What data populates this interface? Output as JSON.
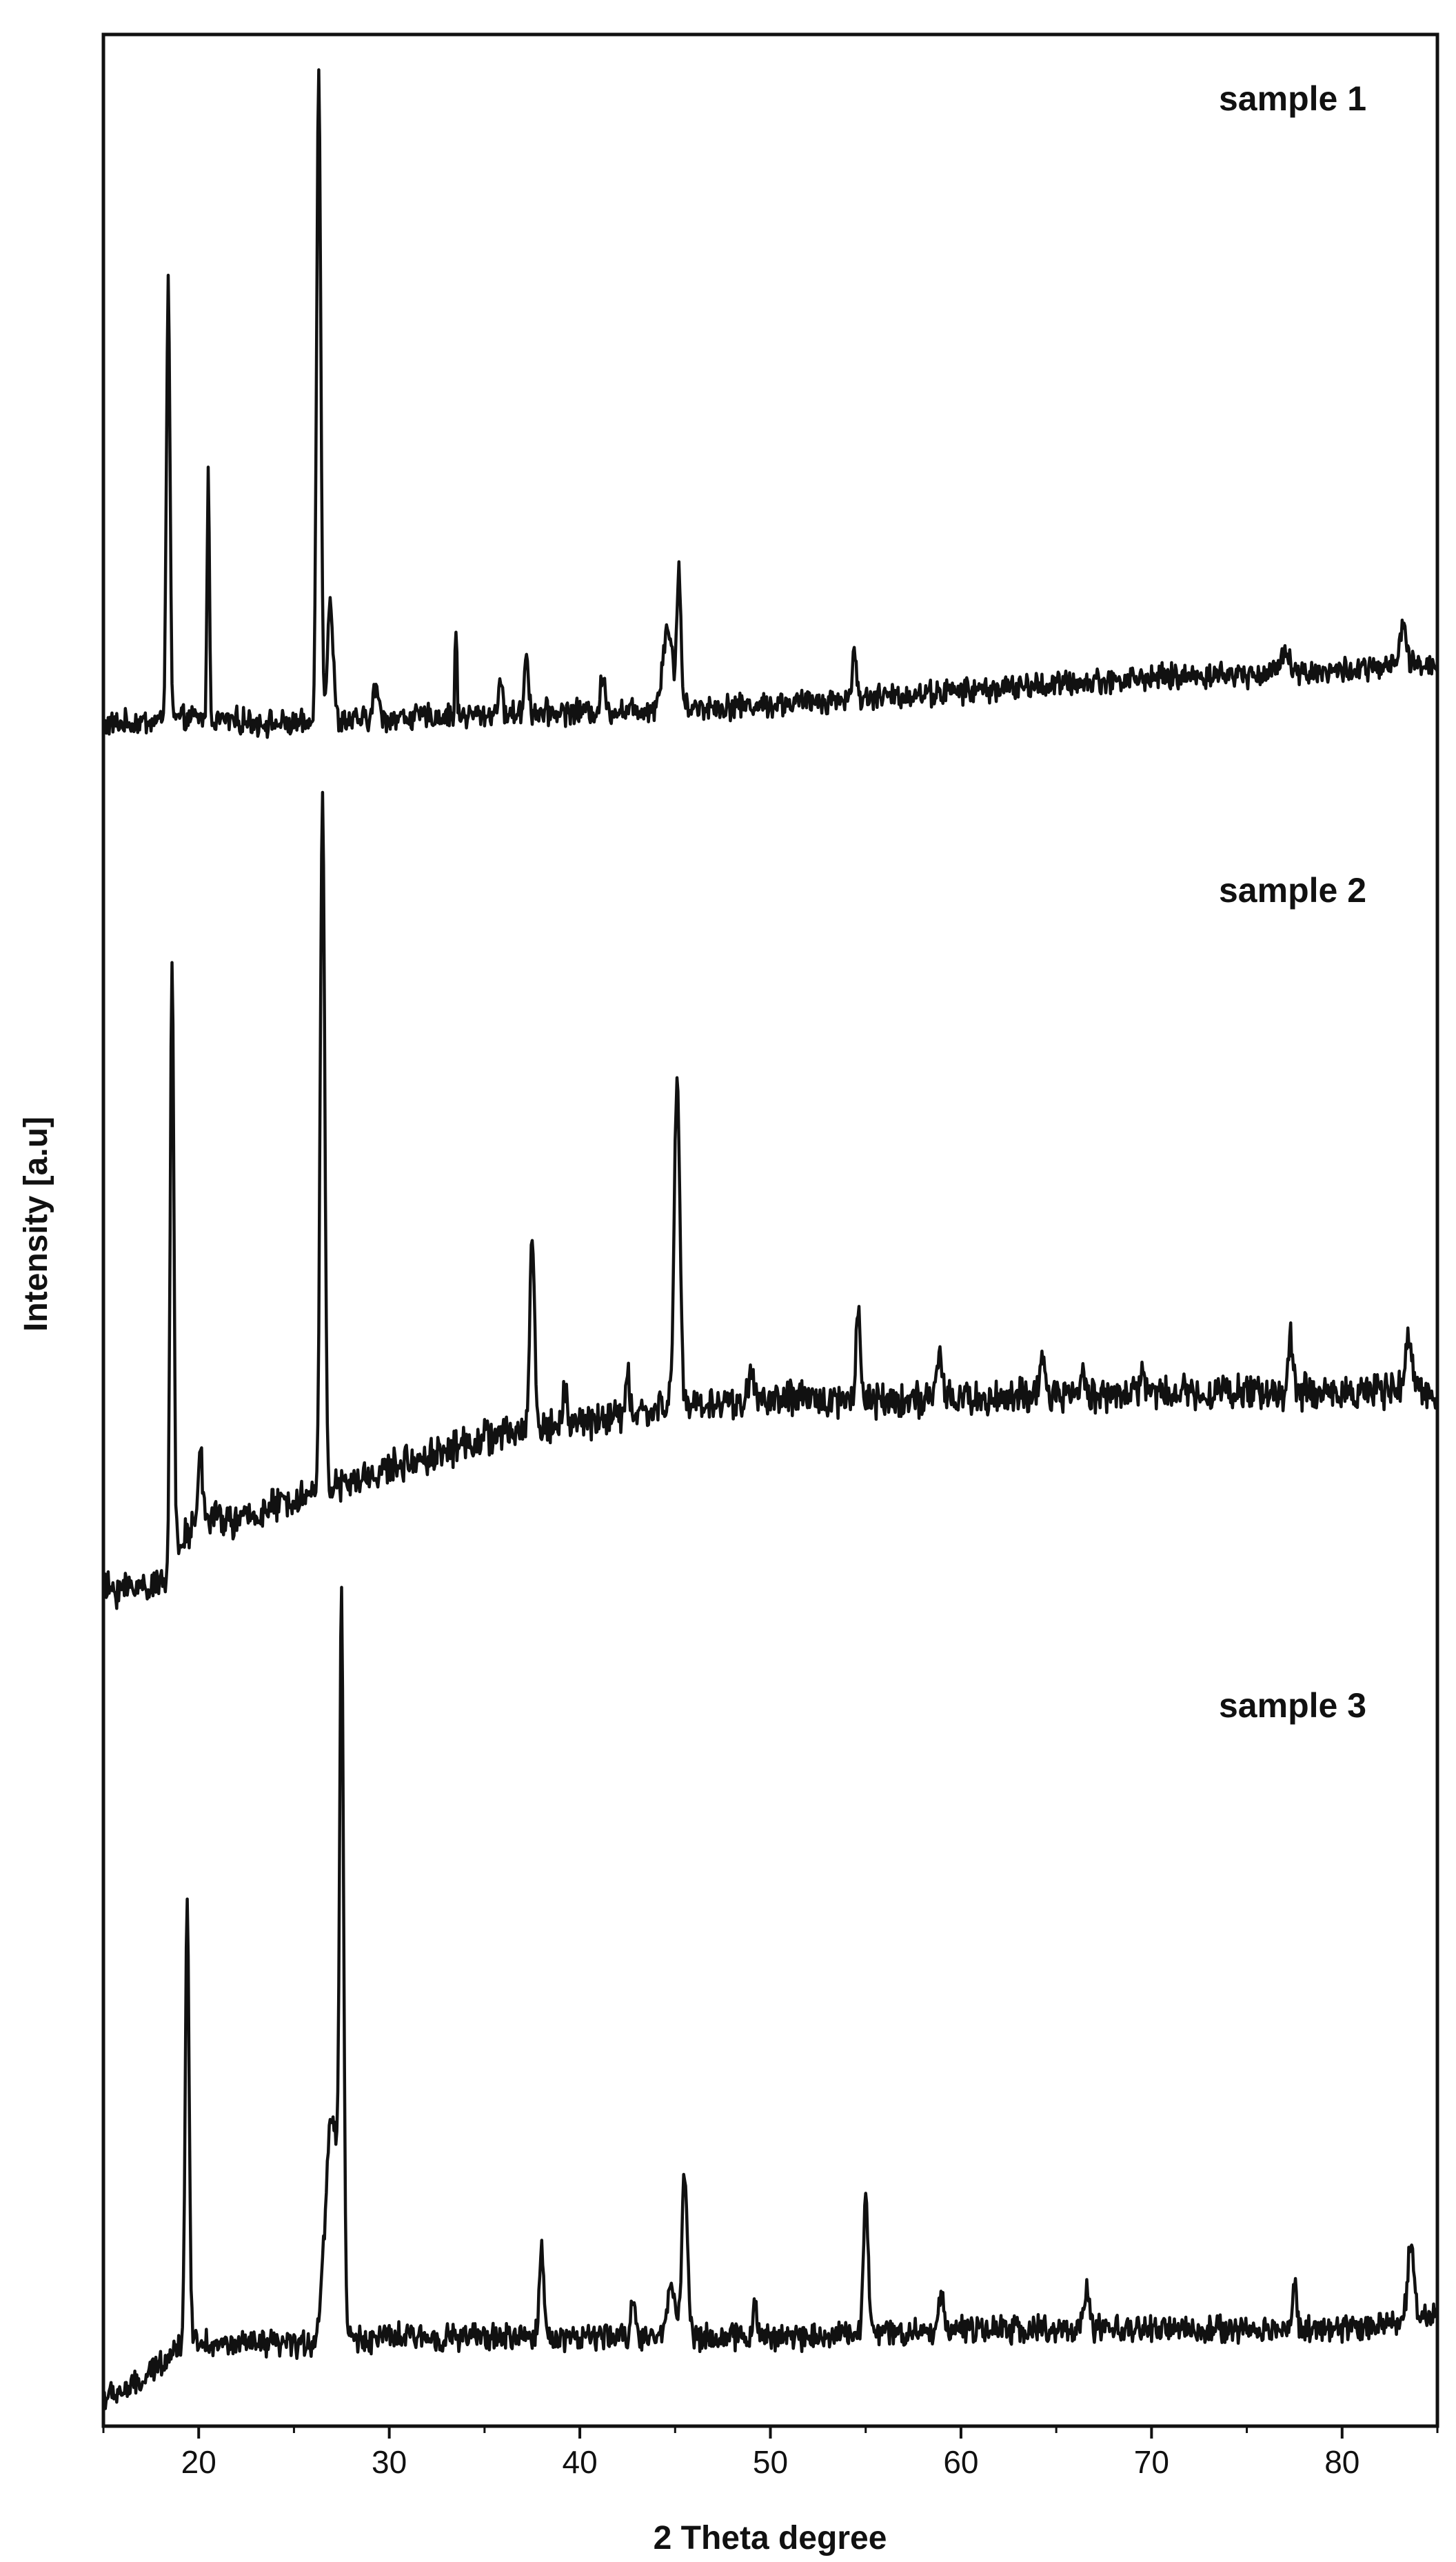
{
  "chart_data": {
    "type": "line",
    "xlabel": "2 Theta degree",
    "ylabel": "Intensity [a.u]",
    "xlim": [
      15,
      85
    ],
    "xticks": [
      20,
      30,
      40,
      50,
      60,
      70,
      80
    ],
    "y_ticks_shown": false,
    "grid": false,
    "line_color": "#111111",
    "layout": "stacked",
    "series": [
      {
        "name": "sample 1",
        "baseline": [
          [
            15,
            0.05
          ],
          [
            20,
            0.06
          ],
          [
            25,
            0.05
          ],
          [
            30,
            0.06
          ],
          [
            40,
            0.07
          ],
          [
            50,
            0.08
          ],
          [
            60,
            0.1
          ],
          [
            70,
            0.12
          ],
          [
            80,
            0.13
          ],
          [
            85,
            0.14
          ]
        ],
        "noise": 0.015,
        "peaks": [
          [
            18.4,
            0.64,
            0.22
          ],
          [
            20.5,
            0.38,
            0.14
          ],
          [
            26.3,
            0.96,
            0.26
          ],
          [
            26.9,
            0.18,
            0.35
          ],
          [
            29.3,
            0.05,
            0.3
          ],
          [
            33.5,
            0.13,
            0.12
          ],
          [
            35.8,
            0.05,
            0.25
          ],
          [
            37.2,
            0.09,
            0.25
          ],
          [
            41.2,
            0.05,
            0.25
          ],
          [
            44.6,
            0.12,
            0.6
          ],
          [
            45.2,
            0.2,
            0.25
          ],
          [
            54.4,
            0.06,
            0.3
          ],
          [
            77.0,
            0.04,
            0.5
          ],
          [
            83.2,
            0.06,
            0.4
          ]
        ]
      },
      {
        "name": "sample 2",
        "baseline": [
          [
            15,
            0.03
          ],
          [
            18,
            0.04
          ],
          [
            20,
            0.13
          ],
          [
            22,
            0.12
          ],
          [
            25,
            0.15
          ],
          [
            28,
            0.17
          ],
          [
            30,
            0.19
          ],
          [
            35,
            0.23
          ],
          [
            40,
            0.25
          ],
          [
            45,
            0.27
          ],
          [
            50,
            0.28
          ],
          [
            60,
            0.28
          ],
          [
            70,
            0.29
          ],
          [
            80,
            0.29
          ],
          [
            85,
            0.29
          ]
        ],
        "noise": 0.018,
        "peaks": [
          [
            18.6,
            0.8,
            0.22
          ],
          [
            20.1,
            0.1,
            0.2
          ],
          [
            26.5,
            0.9,
            0.28
          ],
          [
            37.5,
            0.25,
            0.3
          ],
          [
            39.2,
            0.05,
            0.25
          ],
          [
            42.5,
            0.06,
            0.2
          ],
          [
            45.1,
            0.43,
            0.35
          ],
          [
            49.0,
            0.04,
            0.3
          ],
          [
            54.6,
            0.13,
            0.25
          ],
          [
            58.9,
            0.06,
            0.3
          ],
          [
            64.3,
            0.05,
            0.25
          ],
          [
            66.4,
            0.04,
            0.25
          ],
          [
            69.5,
            0.03,
            0.25
          ],
          [
            77.3,
            0.07,
            0.25
          ],
          [
            83.5,
            0.07,
            0.4
          ]
        ]
      },
      {
        "name": "sample 3",
        "baseline": [
          [
            15,
            0.02
          ],
          [
            17,
            0.04
          ],
          [
            18.5,
            0.08
          ],
          [
            19.5,
            0.1
          ],
          [
            21,
            0.09
          ],
          [
            25,
            0.09
          ],
          [
            30,
            0.1
          ],
          [
            40,
            0.1
          ],
          [
            50,
            0.1
          ],
          [
            60,
            0.11
          ],
          [
            70,
            0.11
          ],
          [
            80,
            0.11
          ],
          [
            85,
            0.13
          ]
        ],
        "noise": 0.014,
        "peaks": [
          [
            19.4,
            0.56,
            0.24
          ],
          [
            27.5,
            0.88,
            0.24
          ],
          [
            27.0,
            0.3,
            0.8
          ],
          [
            38.0,
            0.11,
            0.3
          ],
          [
            42.8,
            0.05,
            0.3
          ],
          [
            45.5,
            0.21,
            0.35
          ],
          [
            44.8,
            0.07,
            0.5
          ],
          [
            49.2,
            0.04,
            0.3
          ],
          [
            55.0,
            0.18,
            0.3
          ],
          [
            59.0,
            0.05,
            0.3
          ],
          [
            66.6,
            0.05,
            0.3
          ],
          [
            77.5,
            0.06,
            0.3
          ],
          [
            83.6,
            0.09,
            0.4
          ]
        ]
      }
    ]
  }
}
